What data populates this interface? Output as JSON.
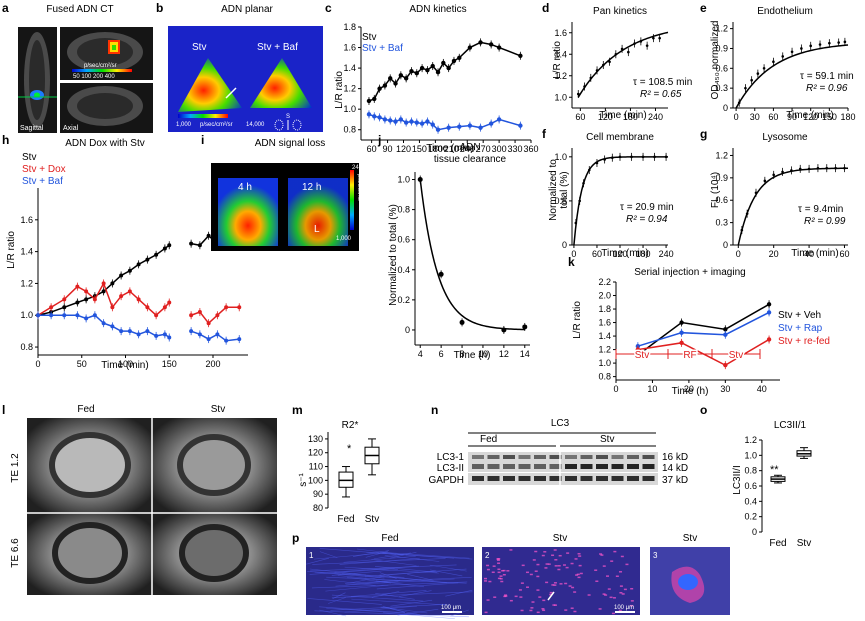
{
  "panels": {
    "a": {
      "letter": "a",
      "title": "Fused ADN CT",
      "scale_unit": "p/sec/cm²/sr",
      "scale_ticks": "50  100  200  400",
      "label_sagittal": "Sagittal",
      "label_axial": "Axial"
    },
    "b": {
      "letter": "b",
      "title": "ADN planar",
      "label_stv": "Stv",
      "label_stv_baf": "Stv + Baf",
      "scale_min": "1,000",
      "scale_unit": "p/sec/cm²/sr",
      "scale_max": "14,000",
      "orient": "S"
    },
    "c": {
      "letter": "c",
      "title": "ADN kinetics",
      "ylabel": "L/R ratio",
      "xlabel": "Time (min)"
    },
    "d": {
      "letter": "d",
      "title": "Pan kinetics",
      "ylabel": "L/R ratio",
      "xlabel": "Time (min)",
      "tau": "τ = 108.5 min",
      "r2": "R² = 0.65"
    },
    "e": {
      "letter": "e",
      "title": "Endothelium",
      "ylabel": "OD₄₅₀ normalized",
      "xlabel": "Time (min)",
      "tau": "τ = 59.1 min",
      "r2": "R² = 0.96"
    },
    "f": {
      "letter": "f",
      "title": "Cell membrane",
      "ylabel1": "Normalized to",
      "ylabel2": "total (%)",
      "xlabel": "Time (min)",
      "tau": "τ = 20.9 min",
      "r2": "R² = 0.94"
    },
    "g": {
      "letter": "g",
      "title": "Lysosome",
      "ylabel": "FL (10⁴)",
      "xlabel": "Time (min)",
      "tau": "τ = 9.4min",
      "r2": "R² = 0.99"
    },
    "h": {
      "letter": "h",
      "title": "ADN Dox with Stv",
      "ylabel": "L/R ratio",
      "xlabel": "Time (min)"
    },
    "i": {
      "letter": "i",
      "title": "ADN signal loss",
      "label_4h": "4 h",
      "label_12h": "12 h",
      "label_L": "L",
      "scale_max": "24,000",
      "scale_unit": "p/sec/cm²/sr",
      "scale_min": "1,000"
    },
    "j": {
      "letter": "j",
      "title1": "ADN",
      "title2": "tissue clearance",
      "ylabel": "Normalized to total (%)",
      "xlabel": "Time (h)"
    },
    "k": {
      "letter": "k",
      "title": "Serial injection + imaging",
      "ylabel": "L/R ratio",
      "xlabel": "Time (h)",
      "seg_stv1": "Stv",
      "seg_rf": "RF",
      "seg_stv2": "Stv"
    },
    "l": {
      "letter": "l",
      "col_fed": "Fed",
      "col_stv": "Stv",
      "row1": "TE 1.2",
      "row2": "TE 6.6"
    },
    "m": {
      "letter": "m",
      "title": "R2*",
      "ylabel": "s⁻¹",
      "star": "*"
    },
    "n": {
      "letter": "n",
      "title": "LC3",
      "grp_fed": "Fed",
      "grp_stv": "Stv",
      "row_lc3_1": "LC3-1",
      "row_lc3_2": "LC3-II",
      "row_gapdh": "GAPDH",
      "kd16": "16 kD",
      "kd14": "14 kD",
      "kd37": "37 kD"
    },
    "o": {
      "letter": "o",
      "title": "LC3II/1",
      "ylabel": "LC3II/I",
      "star": "**"
    },
    "p": {
      "letter": "p",
      "title1": "Fed",
      "title2": "Stv",
      "title3": "Stv",
      "n1": "1",
      "n2": "2",
      "n3": "3",
      "scale1": "100 μm",
      "scale2": "100 μm"
    }
  },
  "colors": {
    "black": "#000000",
    "blue": "#2255dd",
    "red": "#e02020"
  },
  "chart_data": [
    {
      "id": "c",
      "type": "line",
      "xlim": [
        40,
        360
      ],
      "ylim": [
        0.7,
        1.8
      ],
      "xticks": [
        60,
        90,
        120,
        150,
        180,
        210,
        240,
        270,
        300,
        330,
        360
      ],
      "yticks": [
        0.8,
        1.0,
        1.2,
        1.4,
        1.6,
        1.8
      ],
      "series": [
        {
          "name": "Stv",
          "color": "#000000",
          "x": [
            55,
            65,
            75,
            85,
            95,
            105,
            115,
            125,
            135,
            145,
            155,
            165,
            175,
            185,
            195,
            205,
            215,
            225,
            245,
            265,
            285,
            300,
            340
          ],
          "y": [
            1.08,
            1.1,
            1.2,
            1.23,
            1.3,
            1.25,
            1.33,
            1.3,
            1.37,
            1.35,
            1.4,
            1.38,
            1.42,
            1.36,
            1.45,
            1.4,
            1.47,
            1.5,
            1.6,
            1.65,
            1.63,
            1.6,
            1.52
          ]
        },
        {
          "name": "Stv + Baf",
          "color": "#2255dd",
          "x": [
            55,
            65,
            75,
            85,
            95,
            105,
            115,
            125,
            135,
            145,
            155,
            165,
            175,
            185,
            205,
            225,
            245,
            265,
            285,
            300,
            340
          ],
          "y": [
            0.95,
            0.93,
            0.92,
            0.9,
            0.89,
            0.88,
            0.9,
            0.87,
            0.88,
            0.87,
            0.86,
            0.88,
            0.85,
            0.8,
            0.82,
            0.83,
            0.84,
            0.82,
            0.86,
            0.9,
            0.84
          ]
        }
      ]
    },
    {
      "id": "d",
      "type": "scatter",
      "xlim": [
        40,
        270
      ],
      "ylim": [
        0.9,
        1.7
      ],
      "xticks": [
        60,
        120,
        180,
        240
      ],
      "yticks": [
        1.0,
        1.2,
        1.4,
        1.6
      ],
      "series": [
        {
          "color": "#000000",
          "x": [
            55,
            70,
            85,
            100,
            115,
            130,
            145,
            160,
            175,
            190,
            205,
            220,
            235,
            250
          ],
          "y": [
            1.03,
            1.1,
            1.18,
            1.25,
            1.3,
            1.33,
            1.4,
            1.45,
            1.42,
            1.5,
            1.52,
            1.48,
            1.55,
            1.55
          ]
        }
      ],
      "fit": {
        "tau": 108.5,
        "y0": 1.0,
        "a": 0.7,
        "x0": 55
      }
    },
    {
      "id": "e",
      "type": "scatter",
      "xlim": [
        -5,
        180
      ],
      "ylim": [
        0,
        1.3
      ],
      "xticks": [
        0,
        30,
        60,
        90,
        120,
        150,
        180
      ],
      "yticks": [
        0,
        0.3,
        0.6,
        0.9,
        1.2
      ],
      "series": [
        {
          "color": "#000000",
          "x": [
            5,
            15,
            25,
            35,
            45,
            60,
            75,
            90,
            105,
            120,
            135,
            150,
            165,
            175
          ],
          "y": [
            0.08,
            0.3,
            0.42,
            0.52,
            0.6,
            0.7,
            0.78,
            0.85,
            0.9,
            0.94,
            0.96,
            0.98,
            0.99,
            1.0
          ]
        }
      ],
      "fit": {
        "tau": 59.1,
        "y0": 0,
        "a": 1.0,
        "x0": 0
      }
    },
    {
      "id": "f",
      "type": "scatter",
      "xlim": [
        -5,
        245
      ],
      "ylim": [
        0,
        1.1
      ],
      "xticks": [
        0,
        60,
        120,
        180,
        240
      ],
      "yticks": [
        0,
        0.5,
        1.0
      ],
      "series": [
        {
          "color": "#000000",
          "x": [
            5,
            15,
            25,
            40,
            60,
            80,
            100,
            120,
            150,
            180,
            210,
            240
          ],
          "y": [
            0.25,
            0.5,
            0.7,
            0.85,
            0.93,
            0.97,
            0.99,
            1.0,
            1.0,
            1.0,
            1.0,
            1.0
          ]
        }
      ],
      "fit": {
        "tau": 20.9,
        "y0": 0,
        "a": 1.0,
        "x0": 0
      }
    },
    {
      "id": "g",
      "type": "scatter",
      "xlim": [
        -3,
        62
      ],
      "ylim": [
        0,
        1.3
      ],
      "xticks": [
        0,
        20,
        40,
        60
      ],
      "yticks": [
        0,
        0.3,
        0.6,
        0.9,
        1.2
      ],
      "series": [
        {
          "color": "#000000",
          "x": [
            2,
            5,
            10,
            15,
            20,
            25,
            30,
            35,
            40,
            45,
            50,
            55,
            60
          ],
          "y": [
            0.2,
            0.42,
            0.7,
            0.86,
            0.94,
            0.98,
            1.0,
            1.02,
            1.02,
            1.03,
            1.03,
            1.03,
            1.03
          ]
        }
      ],
      "fit": {
        "tau": 9.4,
        "y0": 0,
        "a": 1.03,
        "x0": 0
      }
    },
    {
      "id": "h",
      "type": "line",
      "xlim": [
        0,
        240
      ],
      "ylim": [
        0.75,
        1.8
      ],
      "xticks": [
        0,
        50,
        100,
        150,
        200
      ],
      "yticks": [
        0.8,
        1.0,
        1.2,
        1.4,
        1.6
      ],
      "series": [
        {
          "name": "Stv",
          "color": "#000000",
          "segments": [
            {
              "x": [
                0,
                15,
                30,
                45,
                55,
                65,
                75,
                85,
                95,
                105,
                115,
                125,
                135,
                145,
                150
              ],
              "y": [
                1.0,
                1.02,
                1.05,
                1.08,
                1.1,
                1.12,
                1.15,
                1.2,
                1.25,
                1.28,
                1.32,
                1.35,
                1.38,
                1.42,
                1.44
              ]
            },
            {
              "x": [
                175,
                185,
                195,
                205,
                215,
                230
              ],
              "y": [
                1.45,
                1.44,
                1.5,
                1.45,
                1.55,
                1.65
              ]
            }
          ]
        },
        {
          "name": "Stv + Dox",
          "color": "#e02020",
          "segments": [
            {
              "x": [
                0,
                15,
                30,
                45,
                55,
                65,
                75,
                85,
                95,
                105,
                115,
                125,
                135,
                145,
                150
              ],
              "y": [
                1.0,
                1.05,
                1.1,
                1.18,
                1.15,
                1.1,
                1.2,
                1.05,
                1.12,
                1.15,
                1.1,
                1.05,
                1.0,
                1.05,
                1.08
              ]
            },
            {
              "x": [
                175,
                185,
                195,
                205,
                215,
                230
              ],
              "y": [
                1.0,
                1.02,
                0.95,
                1.0,
                1.05,
                1.05
              ]
            }
          ]
        },
        {
          "name": "Stv + Baf",
          "color": "#2255dd",
          "segments": [
            {
              "x": [
                0,
                15,
                30,
                45,
                55,
                65,
                75,
                85,
                95,
                105,
                115,
                125,
                135,
                145,
                150
              ],
              "y": [
                1.0,
                1.0,
                1.0,
                1.0,
                0.98,
                1.0,
                0.95,
                0.93,
                0.9,
                0.9,
                0.88,
                0.9,
                0.87,
                0.88,
                0.86
              ]
            },
            {
              "x": [
                175,
                185,
                195,
                205,
                215,
                230
              ],
              "y": [
                0.9,
                0.88,
                0.85,
                0.88,
                0.84,
                0.85
              ]
            }
          ]
        }
      ]
    },
    {
      "id": "j",
      "type": "line",
      "xlim": [
        3.5,
        14.5
      ],
      "ylim": [
        -0.1,
        1.05
      ],
      "xticks": [
        4,
        6,
        8,
        10,
        12,
        14
      ],
      "yticks": [
        0,
        0.2,
        0.4,
        0.6,
        0.8,
        1.0
      ],
      "series": [
        {
          "color": "#000000",
          "x": [
            4,
            6,
            8,
            12,
            14
          ],
          "y": [
            1.0,
            0.37,
            0.05,
            0.0,
            0.02
          ]
        }
      ],
      "fit": {
        "tau": 1.7,
        "x0": 4
      }
    },
    {
      "id": "k",
      "type": "line",
      "xlim": [
        0,
        45
      ],
      "ylim": [
        0.75,
        2.2
      ],
      "xticks": [
        0,
        10,
        20,
        30,
        40
      ],
      "yticks": [
        0.8,
        1.0,
        1.2,
        1.4,
        1.6,
        1.8,
        2.0,
        2.2
      ],
      "series": [
        {
          "name": "Stv + Veh",
          "color": "#000000",
          "x": [
            6,
            18,
            30,
            42
          ],
          "y": [
            1.12,
            1.6,
            1.5,
            1.87
          ]
        },
        {
          "name": "Stv + Rap",
          "color": "#2255dd",
          "x": [
            6,
            18,
            30,
            42
          ],
          "y": [
            1.25,
            1.45,
            1.42,
            1.75
          ]
        },
        {
          "name": "Stv + re-fed",
          "color": "#e02020",
          "x": [
            6,
            18,
            30,
            42
          ],
          "y": [
            1.2,
            1.3,
            0.97,
            1.35
          ]
        }
      ]
    },
    {
      "id": "m",
      "type": "box",
      "ylim": [
        80,
        135
      ],
      "yticks": [
        80,
        90,
        100,
        110,
        120,
        130
      ],
      "categories": [
        "Fed",
        "Stv"
      ],
      "boxes": [
        {
          "min": 88,
          "q1": 95,
          "med": 100,
          "q3": 106,
          "max": 110
        },
        {
          "min": 104,
          "q1": 112,
          "med": 118,
          "q3": 124,
          "max": 130
        }
      ]
    },
    {
      "id": "o",
      "type": "box",
      "ylim": [
        0,
        1.2
      ],
      "yticks": [
        0,
        0.2,
        0.4,
        0.6,
        0.8,
        1.0,
        1.2
      ],
      "categories": [
        "Fed",
        "Stv"
      ],
      "boxes": [
        {
          "min": 0.64,
          "q1": 0.66,
          "med": 0.69,
          "q3": 0.72,
          "max": 0.74
        },
        {
          "min": 0.96,
          "q1": 0.99,
          "med": 1.02,
          "q3": 1.06,
          "max": 1.1
        }
      ]
    }
  ]
}
